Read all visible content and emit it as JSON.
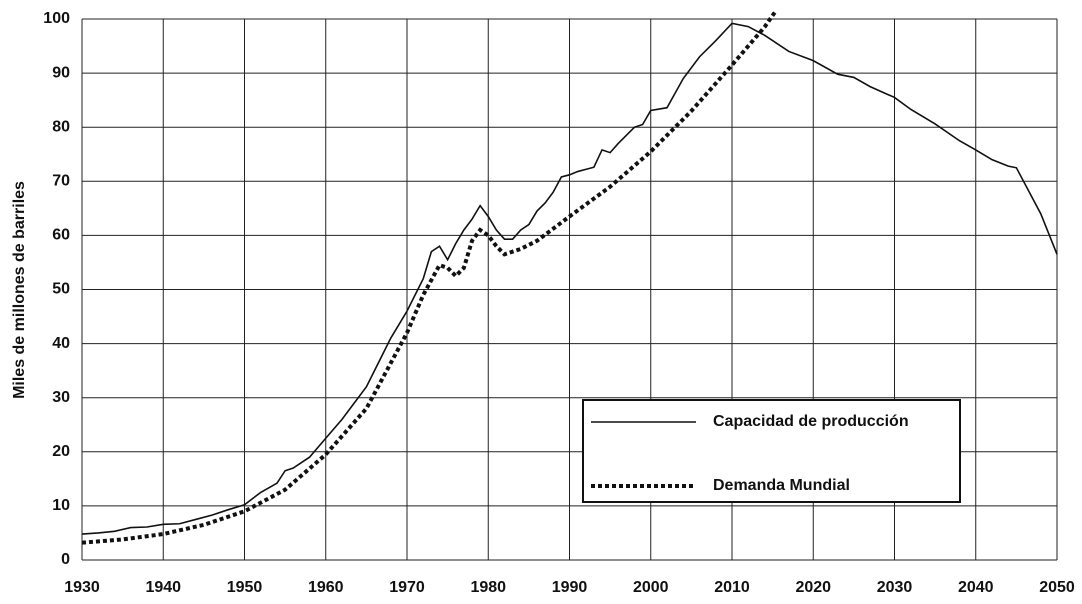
{
  "chart_data": {
    "type": "line",
    "y_label": "Miles de millones de barriles",
    "xlim": [
      1930,
      2050
    ],
    "xticks": [
      1930,
      1940,
      1950,
      1960,
      1970,
      1980,
      1990,
      2000,
      2010,
      2020,
      2030,
      2040,
      2050
    ],
    "ylim": [
      0,
      100
    ],
    "yticks": [
      0,
      10,
      20,
      30,
      40,
      50,
      60,
      70,
      80,
      90,
      100
    ],
    "grid": true,
    "legend": "lower right",
    "series": [
      {
        "name": "Capacidad de producción",
        "color": "#111111",
        "style": "solid",
        "x": [
          1930,
          1932,
          1934,
          1936,
          1938,
          1940,
          1942,
          1944,
          1946,
          1948,
          1950,
          1952,
          1954,
          1955,
          1956,
          1958,
          1960,
          1962,
          1963,
          1965,
          1967,
          1968,
          1970,
          1971,
          1972,
          1973,
          1974,
          1975,
          1976,
          1977,
          1978,
          1979,
          1980,
          1981,
          1982,
          1983,
          1984,
          1985,
          1986,
          1987,
          1988,
          1989,
          1990,
          1991,
          1992,
          1993,
          1994,
          1995,
          1996,
          1997,
          1998,
          1999,
          2000,
          2002,
          2004,
          2006,
          2008,
          2010,
          2012,
          2014,
          2017,
          2020,
          2023,
          2025,
          2027,
          2030,
          2032,
          2035,
          2038,
          2040,
          2042,
          2044,
          2045,
          2048,
          2050
        ],
        "values": [
          4.8,
          5,
          5.3,
          6,
          6.1,
          6.6,
          6.7,
          7.5,
          8.3,
          9.3,
          10.2,
          12.5,
          14.2,
          16.5,
          17,
          19,
          22.5,
          26,
          28,
          32,
          38,
          41,
          46,
          49,
          52,
          57,
          58,
          55.5,
          58.5,
          61,
          63,
          65.5,
          63.5,
          61,
          59.3,
          59.3,
          61,
          62,
          64.5,
          66,
          68,
          70.8,
          71.2,
          71.8,
          72.2,
          72.6,
          75.8,
          75.3,
          77,
          78.5,
          80,
          80.5,
          83.1,
          83.6,
          89,
          93,
          96,
          99.2,
          98.6,
          97,
          94,
          92.3,
          89.8,
          89.2,
          87.5,
          85.5,
          83.3,
          80.6,
          77.5,
          75.8,
          74,
          72.8,
          72.5,
          64,
          56.5
        ]
      },
      {
        "name": "Demanda Mundial",
        "color": "#111111",
        "style": "dotted",
        "x": [
          1930,
          1935,
          1940,
          1945,
          1950,
          1955,
          1960,
          1965,
          1970,
          1972,
          1974,
          1975,
          1976,
          1977,
          1978,
          1979,
          1980,
          1981,
          1982,
          1984,
          1986,
          1990,
          1995,
          2000,
          2005,
          2010,
          2014,
          2015.3
        ],
        "values": [
          3.2,
          3.8,
          4.8,
          6.5,
          9,
          13,
          19.5,
          28,
          42,
          49,
          54.5,
          54,
          52.5,
          54,
          59,
          61,
          60,
          58,
          56.5,
          57.5,
          59,
          63.5,
          69,
          75.5,
          83,
          91.5,
          98.5,
          101.3
        ]
      }
    ]
  }
}
